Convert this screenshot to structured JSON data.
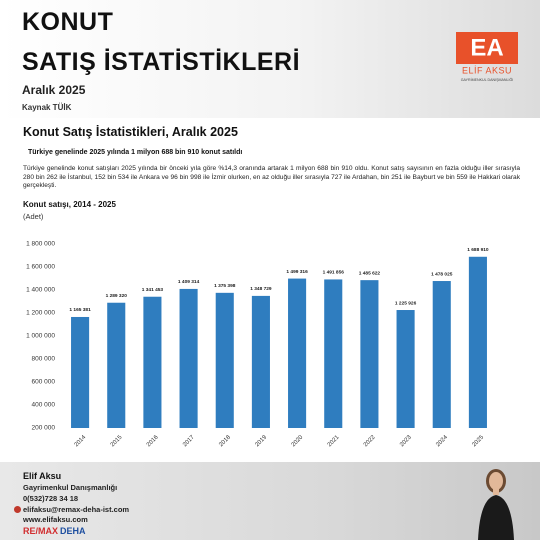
{
  "header": {
    "title_line1": "KONUT",
    "title_line2": "SATIŞ İSTATİSTİKLERİ",
    "date": "Aralık 2025",
    "source": "Kaynak TÜİK",
    "logo": {
      "initials": "EA",
      "name": "ELİF AKSU",
      "tagline": "GAYRİMENKUL DANIŞMANLIĞI"
    }
  },
  "card": {
    "title": "Konut Satış İstatistikleri, Aralık 2025",
    "subtitle": "Türkiye genelinde 2025 yılında 1 milyon 688 bin 910 konut satıldı",
    "paragraph": " Türkiye genelinde konut satışları 2025 yılında bir önceki yıla göre  %14,3 oranında artarak 1 milyon 688 bin 910 oldu. Konut satış sayısının en fazla olduğu iller sırasıyla 280 bin 262 ile İstanbul, 152 bin 534 ile Ankara ve 96 bin 998 ile İzmir olurken, en az olduğu iller sırasıyla  727 ile Ardahan, bin 251 ile Bayburt ve bin 559 ile Hakkari olarak gerçekleşti."
  },
  "chart_data": {
    "type": "bar",
    "title": "Konut satışı, 2014 - 2025",
    "subtitle": "(Adet)",
    "categories": [
      "2014",
      "2015",
      "2016",
      "2017",
      "2018",
      "2019",
      "2020",
      "2021",
      "2022",
      "2023",
      "2024",
      "2025"
    ],
    "values": [
      1165381,
      1289320,
      1341453,
      1409314,
      1375398,
      1348729,
      1499316,
      1491856,
      1485622,
      1225926,
      1478025,
      1688910
    ],
    "value_labels": [
      "1 165 381",
      "1 289 320",
      "1 341 453",
      "1 409 314",
      "1 375 398",
      "1 348 729",
      "1 499 316",
      "1 491 856",
      "1 485 622",
      "1 225 926",
      "1 478 025",
      "1 688 910"
    ],
    "color": "#2f7dbf",
    "grid": false,
    "ylim": [
      200000,
      1800000
    ],
    "yticks": [
      {
        "value": 200000,
        "label": "200 000"
      },
      {
        "value": 400000,
        "label": "400 000"
      },
      {
        "value": 600000,
        "label": "600 000"
      },
      {
        "value": 800000,
        "label": "800 000"
      },
      {
        "value": 1000000,
        "label": "1 000 000"
      },
      {
        "value": 1200000,
        "label": "1 200 000"
      },
      {
        "value": 1400000,
        "label": "1 400 000"
      },
      {
        "value": 1600000,
        "label": "1 600 000"
      },
      {
        "value": 1800000,
        "label": "1 800 000"
      }
    ]
  },
  "footer": {
    "name": "Elif Aksu",
    "role": "Gayrimenkul Danışmanlığı",
    "phone": "0(532)728 34 18",
    "email": "elifaksu@remax-deha-ist.com",
    "web": "www.elifaksu.com",
    "brand": "RE/MAX",
    "office": "DEHA"
  }
}
